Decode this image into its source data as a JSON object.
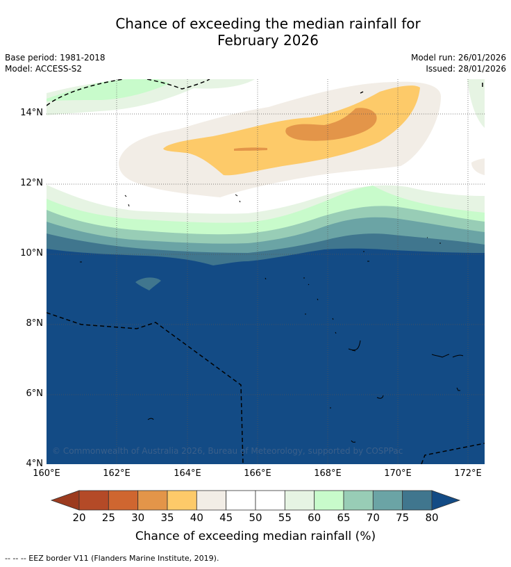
{
  "title": {
    "line1": "Chance of exceeding the median rainfall for",
    "line2": "February 2026"
  },
  "meta": {
    "base_period": "Base period: 1981-2018",
    "model": "Model: ACCESS-S2",
    "model_run": "Model run: 26/01/2026",
    "issued": "Issued: 28/01/2026"
  },
  "copyright": "© Commonwealth of Australia 2026, Bureau of Meteorology, supported by COSPPac",
  "footer": "--  --  -- EEZ border V11 (Flanders Marine Institute, 2019).",
  "map": {
    "lat_labels": [
      "14°N",
      "12°N",
      "10°N",
      "8°N",
      "6°N",
      "4°N"
    ],
    "lon_labels": [
      "160°E",
      "162°E",
      "164°E",
      "166°E",
      "168°E",
      "170°E",
      "172°E"
    ]
  },
  "colorbar": {
    "title": "Chance of exceeding median rainfall (%)",
    "labels": [
      "20",
      "25",
      "30",
      "35",
      "40",
      "45",
      "50",
      "55",
      "60",
      "65",
      "70",
      "75",
      "80"
    ],
    "colors": [
      "#b44a27",
      "#cf6630",
      "#e39549",
      "#fdca69",
      "#f2ede6",
      "#ffffff",
      "#ffffff",
      "#e6f4e3",
      "#c8fbcb",
      "#98cdb6",
      "#6ba4a5",
      "#40768e"
    ],
    "low_color": "#9c3b1f",
    "high_color": "#134b85"
  },
  "legend_colors": {
    "dark_blue": "#134b85",
    "blue_75": "#40768e",
    "teal_70": "#6ba4a5",
    "green_65": "#98cdb6",
    "light_green_60": "#c8fbcb",
    "pale_green_55": "#e6f4e3",
    "beige_40": "#f2ede6",
    "yellow_35": "#fdca69",
    "orange_30": "#e39549"
  }
}
